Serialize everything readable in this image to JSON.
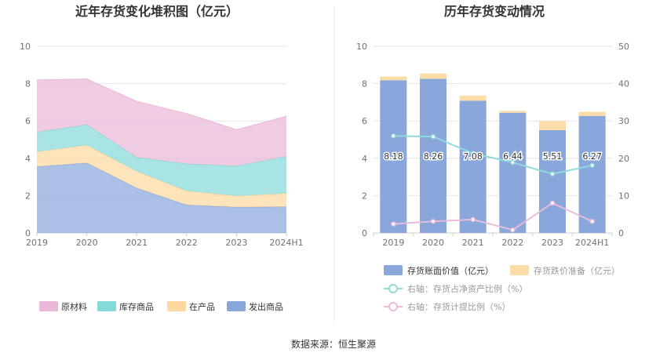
{
  "source": "数据来源：恒生聚源",
  "charts": [
    {
      "title": "近年存货变化堆积图（亿元）",
      "chart_data": {
        "type": "area",
        "stacked": true,
        "categories": [
          "2019",
          "2020",
          "2021",
          "2022",
          "2023",
          "2024H1"
        ],
        "ylim": [
          0,
          10
        ],
        "yticks": [
          0,
          2,
          4,
          6,
          8,
          10
        ],
        "grid": true,
        "legend_position": "bottom",
        "series": [
          {
            "name": "发出商品",
            "values": [
              3.55,
              3.75,
              2.4,
              1.5,
              1.38,
              1.4
            ],
            "color": "#8aa7dc"
          },
          {
            "name": "在产品",
            "values": [
              0.8,
              0.95,
              0.9,
              0.75,
              0.6,
              0.72
            ],
            "color": "#fdd9a0"
          },
          {
            "name": "库存商品",
            "values": [
              1.05,
              1.1,
              0.75,
              1.45,
              1.6,
              1.98
            ],
            "color": "#86d9d9"
          },
          {
            "name": "原材料",
            "values": [
              2.8,
              2.45,
              3.0,
              2.7,
              1.95,
              2.15
            ],
            "color": "#eab8d8"
          }
        ],
        "legend_order": [
          "原材料",
          "库存商品",
          "在产品",
          "发出商品"
        ]
      }
    },
    {
      "title": "历年存货变动情况",
      "chart_data": {
        "type": "bar",
        "categories": [
          "2019",
          "2020",
          "2021",
          "2022",
          "2023",
          "2024H1"
        ],
        "ylim": [
          0,
          10
        ],
        "yticks": [
          0,
          2,
          4,
          6,
          8,
          10
        ],
        "y2lim": [
          0,
          50
        ],
        "y2ticks": [
          0,
          10,
          20,
          30,
          40,
          50
        ],
        "grid": true,
        "legend_position": "bottom",
        "bars": [
          {
            "name": "存货账面价值（亿元）",
            "values": [
              8.18,
              8.26,
              7.08,
              6.44,
              5.51,
              6.27
            ],
            "color": "#8aa7dc",
            "labels": [
              "8.18",
              "8.26",
              "7.08",
              "6.44",
              "5.51",
              "6.27"
            ]
          },
          {
            "name": "存货跌价准备（亿元）",
            "values": [
              0.2,
              0.28,
              0.28,
              0.1,
              0.48,
              0.22
            ],
            "color": "#fddca8"
          }
        ],
        "lines": [
          {
            "name": "右轴：存货占净资产比例（%）",
            "axis": "right",
            "values": [
              26,
              25.8,
              21.3,
              18.9,
              15.8,
              18.1
            ],
            "color": "#8fdada"
          },
          {
            "name": "右轴：存货计提比例（%）",
            "axis": "right",
            "values": [
              2.4,
              3.1,
              3.6,
              0.8,
              8.0,
              3.1
            ],
            "color": "#e8bcdc"
          }
        ]
      }
    }
  ]
}
